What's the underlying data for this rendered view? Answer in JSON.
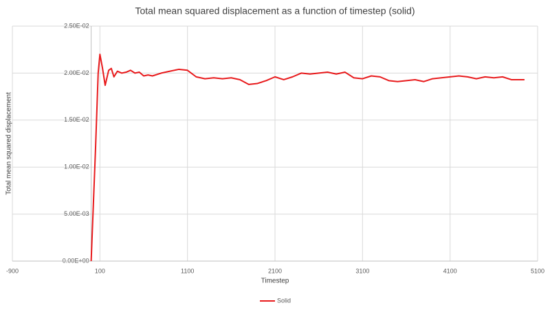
{
  "chart_data": {
    "type": "line",
    "title": "Total mean squared displacement as a function of timestep (solid)",
    "x_label": "Timestep",
    "y_label": "Total mean squared displacement",
    "xlim": [
      -900,
      5100
    ],
    "xticks": [
      -900,
      100,
      1100,
      2100,
      3100,
      4100,
      5100
    ],
    "ylim": [
      0,
      0.025
    ],
    "yticks": [
      {
        "value": 0,
        "label": "0.00E+00"
      },
      {
        "value": 0.005,
        "label": "5.00E-03"
      },
      {
        "value": 0.01,
        "label": "1.00E-02"
      },
      {
        "value": 0.015,
        "label": "1.50E-02"
      },
      {
        "value": 0.02,
        "label": "2.00E-02"
      },
      {
        "value": 0.025,
        "label": "2.50E-02"
      }
    ],
    "grid": true,
    "legend": "bottom",
    "x": [
      0,
      50,
      80,
      100,
      130,
      160,
      200,
      230,
      260,
      300,
      350,
      400,
      450,
      500,
      550,
      600,
      650,
      700,
      800,
      900,
      1000,
      1100,
      1200,
      1300,
      1400,
      1500,
      1600,
      1700,
      1800,
      1900,
      2000,
      2100,
      2200,
      2300,
      2400,
      2500,
      2600,
      2700,
      2800,
      2900,
      3000,
      3100,
      3200,
      3300,
      3400,
      3500,
      3600,
      3700,
      3800,
      3900,
      4000,
      4100,
      4200,
      4300,
      4400,
      4500,
      4600,
      4700,
      4800,
      4950
    ],
    "series": [
      {
        "name": "Solid",
        "color": "#e8191b",
        "values": [
          0,
          0.012,
          0.02,
          0.022,
          0.0205,
          0.0187,
          0.0203,
          0.0205,
          0.0196,
          0.0202,
          0.02,
          0.0201,
          0.0203,
          0.02,
          0.0201,
          0.0197,
          0.0198,
          0.0197,
          0.02,
          0.0202,
          0.0204,
          0.0203,
          0.0196,
          0.0194,
          0.0195,
          0.0194,
          0.0195,
          0.0193,
          0.0188,
          0.0189,
          0.0192,
          0.0196,
          0.0193,
          0.0196,
          0.02,
          0.0199,
          0.02,
          0.0201,
          0.0199,
          0.0201,
          0.0195,
          0.0194,
          0.0197,
          0.0196,
          0.0192,
          0.0191,
          0.0192,
          0.0193,
          0.0191,
          0.0194,
          0.0195,
          0.0196,
          0.0197,
          0.0196,
          0.0194,
          0.0196,
          0.0195,
          0.0196,
          0.0193,
          0.0193
        ]
      }
    ]
  }
}
